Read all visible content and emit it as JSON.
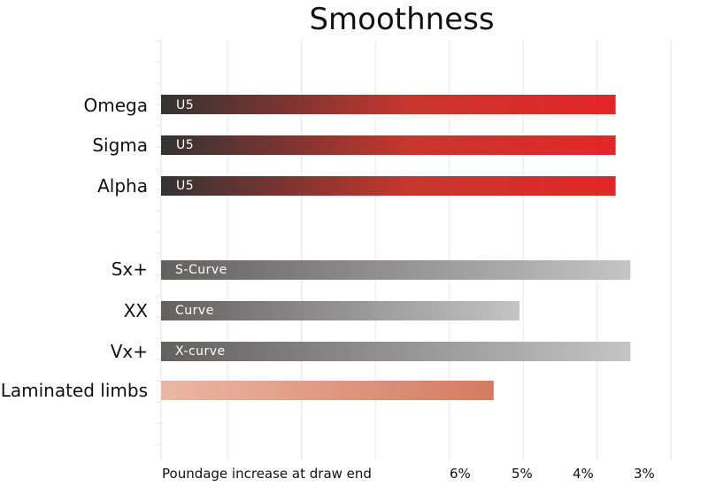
{
  "chart_data": {
    "type": "bar",
    "orientation": "horizontal",
    "title": "Smoothness",
    "xlabel": "Poundage increase at draw end",
    "xtick_labels": [
      "6%",
      "5%",
      "4%",
      "3%"
    ],
    "xtick_values": [
      6,
      5,
      4,
      3
    ],
    "xlim": [
      9.9,
      2.5
    ],
    "x_reversed": true,
    "grid": true,
    "categories": [
      "Omega",
      "Sigma",
      "Alpha",
      "Sx+",
      "XX",
      "Vx+",
      "Laminated limbs"
    ],
    "values": [
      3.75,
      3.75,
      3.75,
      3.55,
      5.05,
      3.55,
      5.4
    ],
    "bar_labels": [
      "U5",
      "U5",
      "U5",
      "S-Curve",
      "Curve",
      "X-curve",
      ""
    ],
    "groups": [
      "red",
      "red",
      "red",
      "gray",
      "gray",
      "gray",
      "peach"
    ]
  },
  "colors": {
    "red_start": "#333333",
    "red_end": "#e52527",
    "gray_start": "#636060",
    "gray_end": "#c4c4c4",
    "peach_start": "#eab7a3",
    "peach_end": "#d47b61",
    "grid": "#e6e6e6"
  }
}
